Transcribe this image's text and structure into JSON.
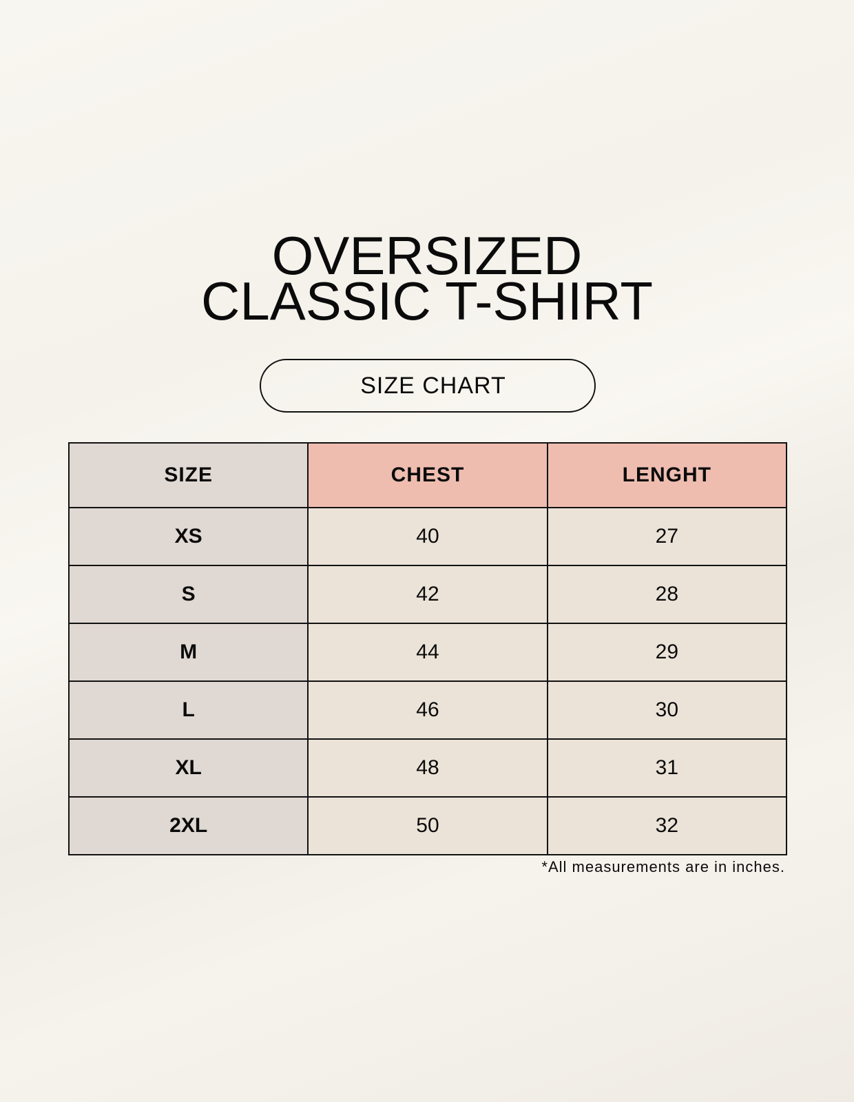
{
  "title": {
    "line1": "OVERSIZED",
    "line2": "CLASSIC T-SHIRT"
  },
  "badge": "SIZE CHART",
  "table": {
    "headers": [
      "SIZE",
      "CHEST",
      "LENGHT"
    ],
    "rows": [
      [
        "XS",
        "40",
        "27"
      ],
      [
        "S",
        "42",
        "28"
      ],
      [
        "M",
        "44",
        "29"
      ],
      [
        "L",
        "46",
        "30"
      ],
      [
        "XL",
        "48",
        "31"
      ],
      [
        "2XL",
        "50",
        "32"
      ]
    ]
  },
  "footnote": "*All measurements are in inches.",
  "colors": {
    "header_size": "#e0d8d2",
    "header_accent": "#eebdb0",
    "cell": "#ebe3d8",
    "background": "#f8f6f0"
  }
}
